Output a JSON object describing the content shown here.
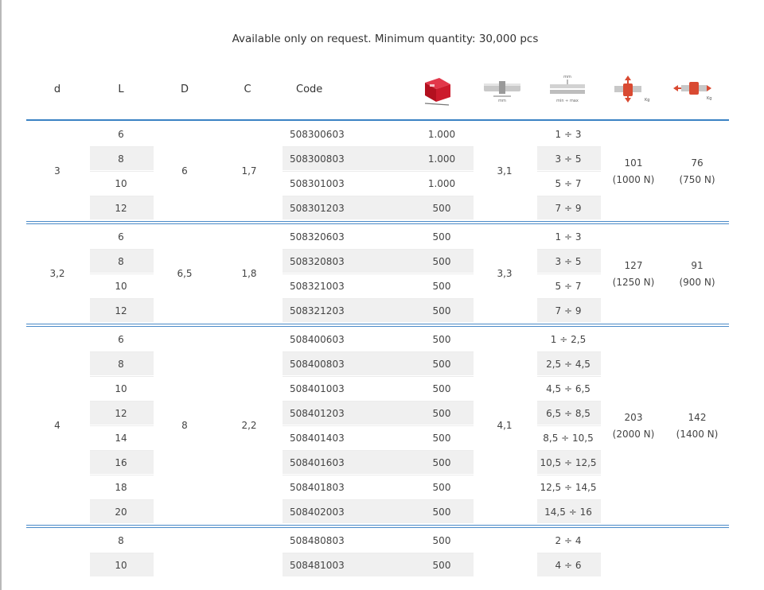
{
  "notice": "Available only on request. Minimum quantity: 30,000 pcs",
  "headers": {
    "d": "d",
    "L": "L",
    "D": "D",
    "C": "C",
    "code": "Code"
  },
  "icons": [
    {
      "name": "package-box-icon",
      "color": "#c8102e"
    },
    {
      "name": "rivet-diameter-icon"
    },
    {
      "name": "grip-range-icon"
    },
    {
      "name": "tensile-strength-icon",
      "color": "#d94a32"
    },
    {
      "name": "shear-strength-icon",
      "color": "#d94a32"
    }
  ],
  "icon_labels": {
    "mm": "mm",
    "min_max": "min ÷ max",
    "kg": "Kg"
  },
  "groups": [
    {
      "d": "3",
      "D": "6",
      "C": "1,7",
      "drill": "3,1",
      "tensile": "101",
      "tensile_n": "(1000 N)",
      "shear": "76",
      "shear_n": "(750 N)",
      "rows": [
        {
          "L": "6",
          "code": "508300603",
          "pack": "1.000",
          "grip": "1 ÷ 3"
        },
        {
          "L": "8",
          "code": "508300803",
          "pack": "1.000",
          "grip": "3 ÷ 5"
        },
        {
          "L": "10",
          "code": "508301003",
          "pack": "1.000",
          "grip": "5 ÷ 7"
        },
        {
          "L": "12",
          "code": "508301203",
          "pack": "500",
          "grip": "7 ÷ 9"
        }
      ]
    },
    {
      "d": "3,2",
      "D": "6,5",
      "C": "1,8",
      "drill": "3,3",
      "tensile": "127",
      "tensile_n": "(1250 N)",
      "shear": "91",
      "shear_n": "(900 N)",
      "rows": [
        {
          "L": "6",
          "code": "508320603",
          "pack": "500",
          "grip": "1 ÷ 3"
        },
        {
          "L": "8",
          "code": "508320803",
          "pack": "500",
          "grip": "3 ÷ 5"
        },
        {
          "L": "10",
          "code": "508321003",
          "pack": "500",
          "grip": "5 ÷ 7"
        },
        {
          "L": "12",
          "code": "508321203",
          "pack": "500",
          "grip": "7 ÷ 9"
        }
      ]
    },
    {
      "d": "4",
      "D": "8",
      "C": "2,2",
      "drill": "4,1",
      "tensile": "203",
      "tensile_n": "(2000 N)",
      "shear": "142",
      "shear_n": "(1400 N)",
      "rows": [
        {
          "L": "6",
          "code": "508400603",
          "pack": "500",
          "grip": "1 ÷ 2,5"
        },
        {
          "L": "8",
          "code": "508400803",
          "pack": "500",
          "grip": "2,5 ÷ 4,5"
        },
        {
          "L": "10",
          "code": "508401003",
          "pack": "500",
          "grip": "4,5 ÷ 6,5"
        },
        {
          "L": "12",
          "code": "508401203",
          "pack": "500",
          "grip": "6,5 ÷ 8,5"
        },
        {
          "L": "14",
          "code": "508401403",
          "pack": "500",
          "grip": "8,5 ÷ 10,5"
        },
        {
          "L": "16",
          "code": "508401603",
          "pack": "500",
          "grip": "10,5 ÷ 12,5"
        },
        {
          "L": "18",
          "code": "508401803",
          "pack": "500",
          "grip": "12,5 ÷ 14,5"
        },
        {
          "L": "20",
          "code": "508402003",
          "pack": "500",
          "grip": "14,5 ÷ 16"
        }
      ]
    },
    {
      "d": "",
      "D": "",
      "C": "",
      "drill": "",
      "tensile": "",
      "tensile_n": "",
      "shear": "",
      "shear_n": "",
      "rows": [
        {
          "L": "8",
          "code": "508480803",
          "pack": "500",
          "grip": "2 ÷ 4"
        },
        {
          "L": "10",
          "code": "508481003",
          "pack": "500",
          "grip": "4 ÷ 6"
        }
      ]
    }
  ]
}
